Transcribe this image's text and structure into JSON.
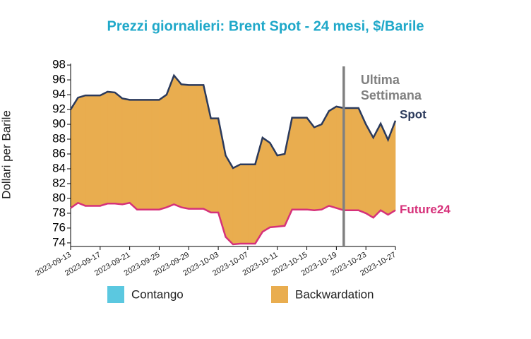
{
  "chart_data": {
    "type": "area-between",
    "title": "Prezzi giornalieri: Brent Spot - 24 mesi, $/Barile",
    "y_label": "Dollari per Barile",
    "x": [
      "2023-09-13",
      "2023-09-14",
      "2023-09-15",
      "2023-09-16",
      "2023-09-17",
      "2023-09-18",
      "2023-09-19",
      "2023-09-20",
      "2023-09-21",
      "2023-09-22",
      "2023-09-23",
      "2023-09-24",
      "2023-09-25",
      "2023-09-26",
      "2023-09-27",
      "2023-09-28",
      "2023-09-29",
      "2023-09-30",
      "2023-10-01",
      "2023-10-02",
      "2023-10-03",
      "2023-10-04",
      "2023-10-05",
      "2023-10-06",
      "2023-10-07",
      "2023-10-08",
      "2023-10-09",
      "2023-10-10",
      "2023-10-11",
      "2023-10-12",
      "2023-10-13",
      "2023-10-14",
      "2023-10-15",
      "2023-10-16",
      "2023-10-17",
      "2023-10-18",
      "2023-10-19",
      "2023-10-20",
      "2023-10-21",
      "2023-10-22",
      "2023-10-23",
      "2023-10-24",
      "2023-10-25",
      "2023-10-26",
      "2023-10-27"
    ],
    "series": [
      {
        "name": "Spot",
        "color": "#2b3a5c",
        "values": [
          92.0,
          93.6,
          93.9,
          93.9,
          93.9,
          94.4,
          94.3,
          93.5,
          93.3,
          93.3,
          93.3,
          93.3,
          93.3,
          94.0,
          96.6,
          95.4,
          95.3,
          95.3,
          95.3,
          90.8,
          90.8,
          85.8,
          84.1,
          84.6,
          84.6,
          84.6,
          88.2,
          87.5,
          85.8,
          86.0,
          90.9,
          90.9,
          90.9,
          89.6,
          90.0,
          91.8,
          92.4,
          92.2,
          92.2,
          92.2,
          90.0,
          88.2,
          90.1,
          87.9,
          90.5
        ]
      },
      {
        "name": "Future24",
        "color": "#d6317a",
        "values": [
          78.7,
          79.4,
          79.0,
          79.0,
          79.0,
          79.3,
          79.3,
          79.2,
          79.4,
          78.5,
          78.5,
          78.5,
          78.5,
          78.8,
          79.2,
          78.8,
          78.6,
          78.6,
          78.6,
          78.1,
          78.1,
          74.8,
          73.8,
          73.9,
          73.9,
          73.9,
          75.5,
          76.1,
          76.2,
          76.3,
          78.5,
          78.5,
          78.5,
          78.4,
          78.5,
          79.0,
          78.7,
          78.4,
          78.4,
          78.4,
          78.0,
          77.4,
          78.4,
          77.8,
          78.4
        ]
      }
    ],
    "fill_legend": [
      {
        "name": "Contango",
        "color": "#5bc8e0"
      },
      {
        "name": "Backwardation",
        "color": "#e9ad4f"
      }
    ],
    "ylim": [
      73.8,
      98.2
    ],
    "yticks": [
      74,
      76,
      78,
      80,
      82,
      84,
      86,
      88,
      90,
      92,
      94,
      96,
      98
    ],
    "xticks": [
      "2023-09-13",
      "2023-09-17",
      "2023-09-21",
      "2023-09-25",
      "2023-09-29",
      "2023-10-03",
      "2023-10-07",
      "2023-10-11",
      "2023-10-15",
      "2023-10-19",
      "2023-10-23",
      "2023-10-27"
    ],
    "marker_line": {
      "x": "2023-10-20",
      "label": [
        "Ultima",
        "Settimana"
      ],
      "color": "#808080"
    }
  }
}
